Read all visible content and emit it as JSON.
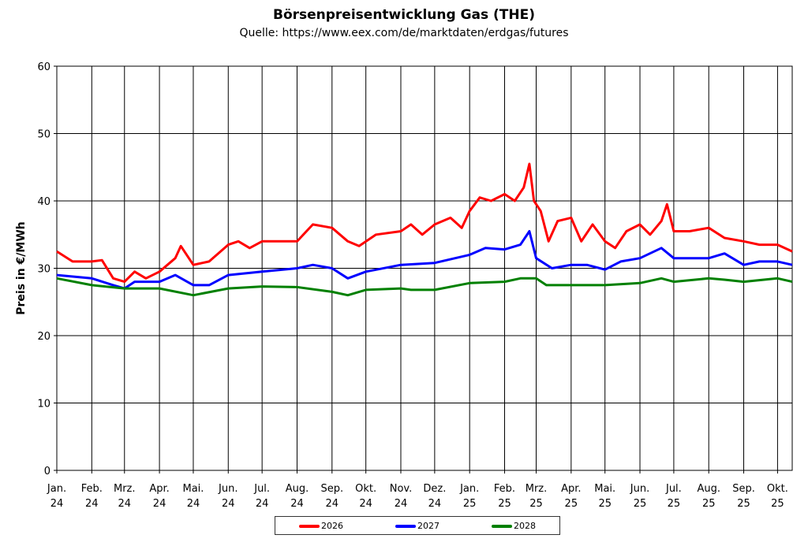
{
  "chart_data": {
    "type": "line",
    "title": "Börsenpreisentwicklung Gas (THE)",
    "subtitle": "Quelle: https://www.eex.com/de/marktdaten/erdgas/futures",
    "ylabel": "Preis in €/MWh",
    "xlabel": "",
    "ylim": [
      0,
      60
    ],
    "yticks": [
      0,
      10,
      20,
      30,
      40,
      50,
      60
    ],
    "xlim": [
      "2024-01-01",
      "2025-10-14"
    ],
    "xticks": [
      {
        "date": "2024-01-01",
        "label": [
          "Jan.",
          "24"
        ]
      },
      {
        "date": "2024-02-01",
        "label": [
          "Feb.",
          "24"
        ]
      },
      {
        "date": "2024-03-01",
        "label": [
          "Mrz.",
          "24"
        ]
      },
      {
        "date": "2024-04-01",
        "label": [
          "Apr.",
          "24"
        ]
      },
      {
        "date": "2024-05-01",
        "label": [
          "Mai.",
          "24"
        ]
      },
      {
        "date": "2024-06-01",
        "label": [
          "Jun.",
          "24"
        ]
      },
      {
        "date": "2024-07-01",
        "label": [
          "Jul.",
          "24"
        ]
      },
      {
        "date": "2024-08-01",
        "label": [
          "Aug.",
          "24"
        ]
      },
      {
        "date": "2024-09-01",
        "label": [
          "Sep.",
          "24"
        ]
      },
      {
        "date": "2024-10-01",
        "label": [
          "Okt.",
          "24"
        ]
      },
      {
        "date": "2024-11-01",
        "label": [
          "Nov.",
          "24"
        ]
      },
      {
        "date": "2024-12-01",
        "label": [
          "Dez.",
          "24"
        ]
      },
      {
        "date": "2025-01-01",
        "label": [
          "Jan.",
          "25"
        ]
      },
      {
        "date": "2025-02-01",
        "label": [
          "Feb.",
          "25"
        ]
      },
      {
        "date": "2025-03-01",
        "label": [
          "Mrz.",
          "25"
        ]
      },
      {
        "date": "2025-04-01",
        "label": [
          "Apr.",
          "25"
        ]
      },
      {
        "date": "2025-05-01",
        "label": [
          "Mai.",
          "25"
        ]
      },
      {
        "date": "2025-06-01",
        "label": [
          "Jun.",
          "25"
        ]
      },
      {
        "date": "2025-07-01",
        "label": [
          "Jul.",
          "25"
        ]
      },
      {
        "date": "2025-08-01",
        "label": [
          "Aug.",
          "25"
        ]
      },
      {
        "date": "2025-09-01",
        "label": [
          "Sep.",
          "25"
        ]
      },
      {
        "date": "2025-10-01",
        "label": [
          "Okt.",
          "25"
        ]
      }
    ],
    "grid": true,
    "legend_placement": "bottom",
    "series": [
      {
        "name": "2026",
        "color": "#ff0000",
        "points": [
          [
            "2024-01-01",
            32.5
          ],
          [
            "2024-01-15",
            31
          ],
          [
            "2024-02-01",
            31
          ],
          [
            "2024-02-10",
            31.2
          ],
          [
            "2024-02-20",
            28.5
          ],
          [
            "2024-03-01",
            28
          ],
          [
            "2024-03-10",
            29.5
          ],
          [
            "2024-03-20",
            28.5
          ],
          [
            "2024-04-01",
            29.5
          ],
          [
            "2024-04-15",
            31.5
          ],
          [
            "2024-04-20",
            33.3
          ],
          [
            "2024-05-01",
            30.5
          ],
          [
            "2024-05-15",
            31
          ],
          [
            "2024-06-01",
            33.5
          ],
          [
            "2024-06-10",
            34
          ],
          [
            "2024-06-20",
            33
          ],
          [
            "2024-07-01",
            34
          ],
          [
            "2024-07-15",
            34
          ],
          [
            "2024-08-01",
            34
          ],
          [
            "2024-08-15",
            36.5
          ],
          [
            "2024-09-01",
            36
          ],
          [
            "2024-09-15",
            34
          ],
          [
            "2024-09-25",
            33.3
          ],
          [
            "2024-10-10",
            35
          ],
          [
            "2024-11-01",
            35.5
          ],
          [
            "2024-11-10",
            36.5
          ],
          [
            "2024-11-20",
            35
          ],
          [
            "2024-12-01",
            36.5
          ],
          [
            "2024-12-15",
            37.5
          ],
          [
            "2024-12-25",
            36
          ],
          [
            "2025-01-01",
            38.5
          ],
          [
            "2025-01-10",
            40.5
          ],
          [
            "2025-01-20",
            40
          ],
          [
            "2025-02-01",
            41
          ],
          [
            "2025-02-10",
            40
          ],
          [
            "2025-02-18",
            42
          ],
          [
            "2025-02-23",
            45.5
          ],
          [
            "2025-02-27",
            40
          ],
          [
            "2025-03-05",
            38.5
          ],
          [
            "2025-03-12",
            34
          ],
          [
            "2025-03-20",
            37
          ],
          [
            "2025-04-01",
            37.5
          ],
          [
            "2025-04-10",
            34
          ],
          [
            "2025-04-20",
            36.5
          ],
          [
            "2025-05-01",
            34
          ],
          [
            "2025-05-10",
            33
          ],
          [
            "2025-05-20",
            35.5
          ],
          [
            "2025-06-01",
            36.5
          ],
          [
            "2025-06-10",
            35
          ],
          [
            "2025-06-20",
            37
          ],
          [
            "2025-06-25",
            39.5
          ],
          [
            "2025-07-01",
            35.5
          ],
          [
            "2025-07-15",
            35.5
          ],
          [
            "2025-08-01",
            36
          ],
          [
            "2025-08-15",
            34.5
          ],
          [
            "2025-09-01",
            34
          ],
          [
            "2025-09-15",
            33.5
          ],
          [
            "2025-10-01",
            33.5
          ],
          [
            "2025-10-14",
            32.5
          ]
        ]
      },
      {
        "name": "2027",
        "color": "#0000ff",
        "points": [
          [
            "2024-01-01",
            29
          ],
          [
            "2024-02-01",
            28.5
          ],
          [
            "2024-02-20",
            27.5
          ],
          [
            "2024-03-01",
            27
          ],
          [
            "2024-03-10",
            28
          ],
          [
            "2024-04-01",
            28
          ],
          [
            "2024-04-15",
            29
          ],
          [
            "2024-05-01",
            27.5
          ],
          [
            "2024-05-15",
            27.5
          ],
          [
            "2024-06-01",
            29
          ],
          [
            "2024-07-01",
            29.5
          ],
          [
            "2024-08-01",
            30
          ],
          [
            "2024-08-15",
            30.5
          ],
          [
            "2024-09-01",
            30
          ],
          [
            "2024-09-15",
            28.5
          ],
          [
            "2024-10-01",
            29.5
          ],
          [
            "2024-11-01",
            30.5
          ],
          [
            "2024-12-01",
            30.8
          ],
          [
            "2025-01-01",
            32
          ],
          [
            "2025-01-15",
            33
          ],
          [
            "2025-02-01",
            32.8
          ],
          [
            "2025-02-15",
            33.5
          ],
          [
            "2025-02-23",
            35.5
          ],
          [
            "2025-03-01",
            31.5
          ],
          [
            "2025-03-15",
            30
          ],
          [
            "2025-04-01",
            30.5
          ],
          [
            "2025-04-15",
            30.5
          ],
          [
            "2025-05-01",
            29.8
          ],
          [
            "2025-05-15",
            31
          ],
          [
            "2025-06-01",
            31.5
          ],
          [
            "2025-06-20",
            33
          ],
          [
            "2025-07-01",
            31.5
          ],
          [
            "2025-08-01",
            31.5
          ],
          [
            "2025-08-15",
            32.2
          ],
          [
            "2025-09-01",
            30.5
          ],
          [
            "2025-09-15",
            31
          ],
          [
            "2025-10-01",
            31
          ],
          [
            "2025-10-14",
            30.5
          ]
        ]
      },
      {
        "name": "2028",
        "color": "#008000",
        "points": [
          [
            "2024-01-01",
            28.5
          ],
          [
            "2024-02-01",
            27.5
          ],
          [
            "2024-03-01",
            27
          ],
          [
            "2024-04-01",
            27
          ],
          [
            "2024-05-01",
            26
          ],
          [
            "2024-06-01",
            27
          ],
          [
            "2024-07-01",
            27.3
          ],
          [
            "2024-08-01",
            27.2
          ],
          [
            "2024-09-01",
            26.5
          ],
          [
            "2024-09-15",
            26
          ],
          [
            "2024-10-01",
            26.8
          ],
          [
            "2024-11-01",
            27
          ],
          [
            "2024-11-10",
            26.8
          ],
          [
            "2024-12-01",
            26.8
          ],
          [
            "2025-01-01",
            27.8
          ],
          [
            "2025-02-01",
            28
          ],
          [
            "2025-02-15",
            28.5
          ],
          [
            "2025-03-01",
            28.5
          ],
          [
            "2025-03-10",
            27.5
          ],
          [
            "2025-04-01",
            27.5
          ],
          [
            "2025-05-01",
            27.5
          ],
          [
            "2025-06-01",
            27.8
          ],
          [
            "2025-06-20",
            28.5
          ],
          [
            "2025-07-01",
            28
          ],
          [
            "2025-08-01",
            28.5
          ],
          [
            "2025-08-15",
            28.3
          ],
          [
            "2025-09-01",
            28
          ],
          [
            "2025-10-01",
            28.5
          ],
          [
            "2025-10-14",
            28
          ]
        ]
      }
    ]
  }
}
